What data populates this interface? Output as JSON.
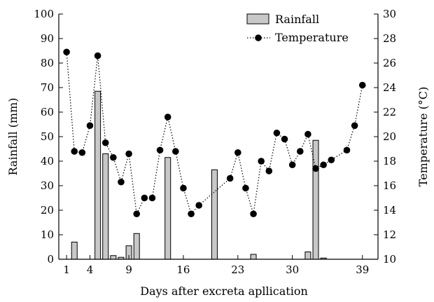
{
  "chart_data": {
    "type": "bar+line",
    "title": "",
    "xlabel": "Days after excreta apllication",
    "ylabel_left": "Rainfall (mm)",
    "ylabel_right": "Temperature (°C)",
    "x_ticks": [
      1,
      4,
      9,
      16,
      23,
      30,
      39
    ],
    "xlim": [
      0,
      41
    ],
    "ylim_left": [
      0,
      100
    ],
    "ylim_right": [
      10,
      30
    ],
    "y_ticks_left": [
      0,
      10,
      20,
      30,
      40,
      50,
      60,
      70,
      80,
      90,
      100
    ],
    "y_ticks_right": [
      10,
      12,
      14,
      16,
      18,
      20,
      22,
      24,
      26,
      28,
      30
    ],
    "grid": false,
    "legend_position": "top-right",
    "series": [
      {
        "name": "Rainfall",
        "type": "bar",
        "axis": "left",
        "color": "#c8c8c8",
        "points": [
          {
            "x": 2,
            "y": 7
          },
          {
            "x": 5,
            "y": 68.5
          },
          {
            "x": 6,
            "y": 43
          },
          {
            "x": 7,
            "y": 1.5
          },
          {
            "x": 8,
            "y": 0.8
          },
          {
            "x": 9,
            "y": 5.5
          },
          {
            "x": 10,
            "y": 10.5
          },
          {
            "x": 14,
            "y": 41.5
          },
          {
            "x": 20,
            "y": 36.5
          },
          {
            "x": 25,
            "y": 2
          },
          {
            "x": 32,
            "y": 3
          },
          {
            "x": 33,
            "y": 48.5
          },
          {
            "x": 34,
            "y": 0.5
          }
        ]
      },
      {
        "name": "Temperature",
        "type": "line",
        "style": "dotted",
        "axis": "right",
        "color": "#000000",
        "points": [
          {
            "x": 1,
            "y": 26.9
          },
          {
            "x": 2,
            "y": 18.8
          },
          {
            "x": 3,
            "y": 18.7
          },
          {
            "x": 4,
            "y": 20.9
          },
          {
            "x": 5,
            "y": 26.6
          },
          {
            "x": 6,
            "y": 19.5
          },
          {
            "x": 7,
            "y": 18.3
          },
          {
            "x": 8,
            "y": 16.3
          },
          {
            "x": 9,
            "y": 18.6
          },
          {
            "x": 10,
            "y": 13.7
          },
          {
            "x": 11,
            "y": 15
          },
          {
            "x": 12,
            "y": 15
          },
          {
            "x": 13,
            "y": 18.9
          },
          {
            "x": 14,
            "y": 21.6
          },
          {
            "x": 15,
            "y": 18.8
          },
          {
            "x": 16,
            "y": 15.8
          },
          {
            "x": 17,
            "y": 13.7
          },
          {
            "x": 18,
            "y": 14.4
          },
          {
            "x": 22,
            "y": 16.6
          },
          {
            "x": 23,
            "y": 18.7
          },
          {
            "x": 24,
            "y": 15.8
          },
          {
            "x": 25,
            "y": 13.7
          },
          {
            "x": 26,
            "y": 18
          },
          {
            "x": 27,
            "y": 17.2
          },
          {
            "x": 28,
            "y": 20.3
          },
          {
            "x": 29,
            "y": 19.8
          },
          {
            "x": 30,
            "y": 17.7
          },
          {
            "x": 31,
            "y": 18.8
          },
          {
            "x": 32,
            "y": 20.2
          },
          {
            "x": 33,
            "y": 17.4
          },
          {
            "x": 34,
            "y": 17.7
          },
          {
            "x": 35,
            "y": 18.1
          },
          {
            "x": 37,
            "y": 18.9
          },
          {
            "x": 38,
            "y": 20.9
          },
          {
            "x": 39,
            "y": 24.2
          }
        ]
      }
    ]
  }
}
